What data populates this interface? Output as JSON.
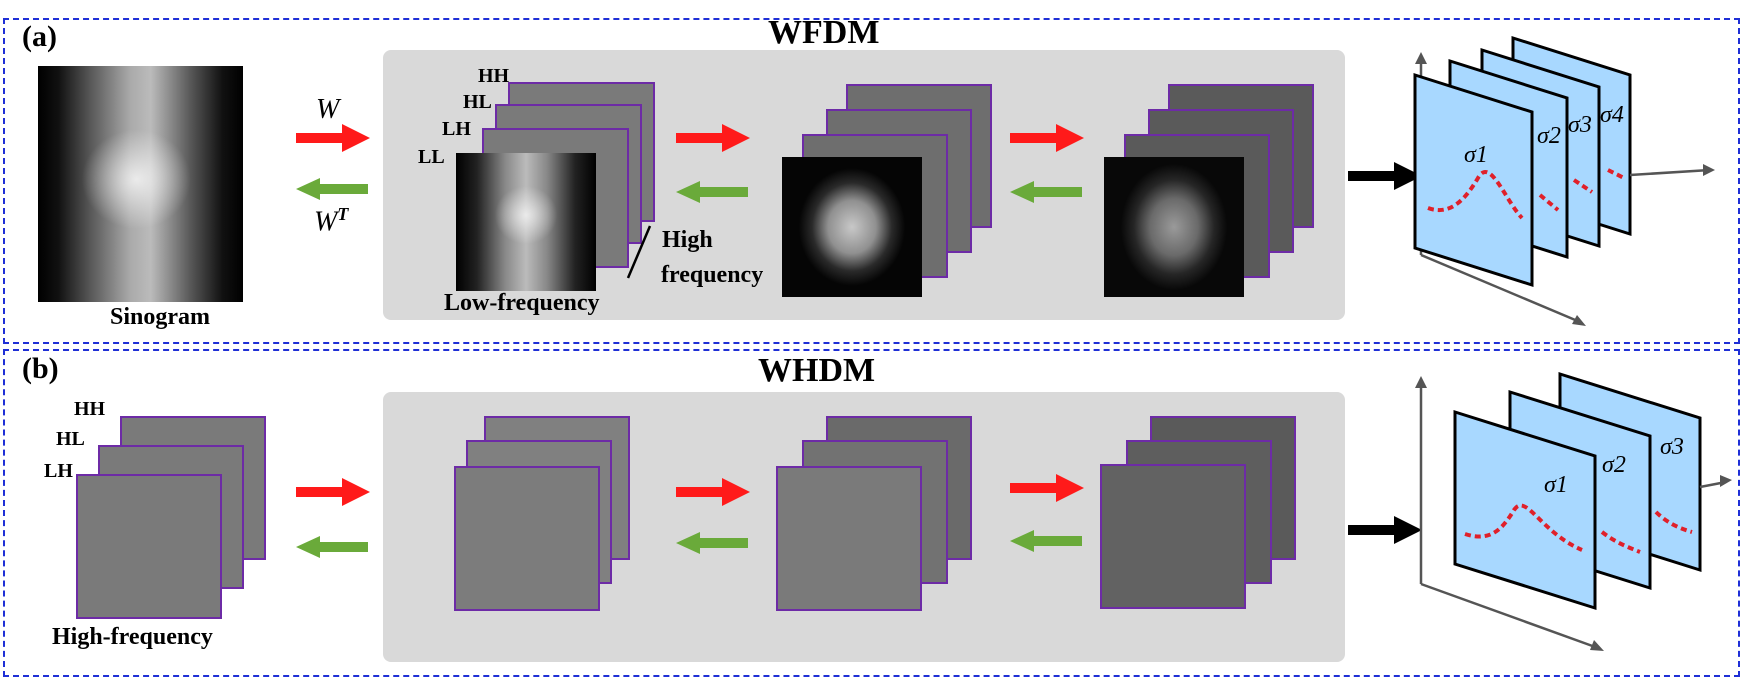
{
  "panel_a": {
    "tag": "(a)",
    "title": "WFDM",
    "input_label": "Sinogram",
    "forward_op": "W",
    "inverse_op": "W",
    "inverse_sup": "T",
    "subbands": [
      "HH",
      "HL",
      "LH",
      "LL"
    ],
    "low_freq_label": "Low-frequency",
    "high_freq_label_1": "High",
    "high_freq_label_2": "frequency",
    "sigmas": [
      "σ1",
      "σ2",
      "σ3",
      "σ4"
    ]
  },
  "panel_b": {
    "tag": "(b)",
    "title": "WHDM",
    "subbands": [
      "HH",
      "HL",
      "LH"
    ],
    "input_label": "High-frequency",
    "sigmas": [
      "σ1",
      "σ2",
      "σ3"
    ]
  },
  "colors": {
    "border": "#1f2fd6",
    "forward_arrow": "#ff1a1a",
    "reverse_arrow": "#6aaa3a",
    "sheet_border": "#6d2ba6",
    "noise_plane": "#a8d8ff",
    "curve": "#e0202a"
  },
  "icons": [
    "red-right-arrow-icon",
    "green-left-arrow-icon",
    "black-right-arrow-icon"
  ]
}
